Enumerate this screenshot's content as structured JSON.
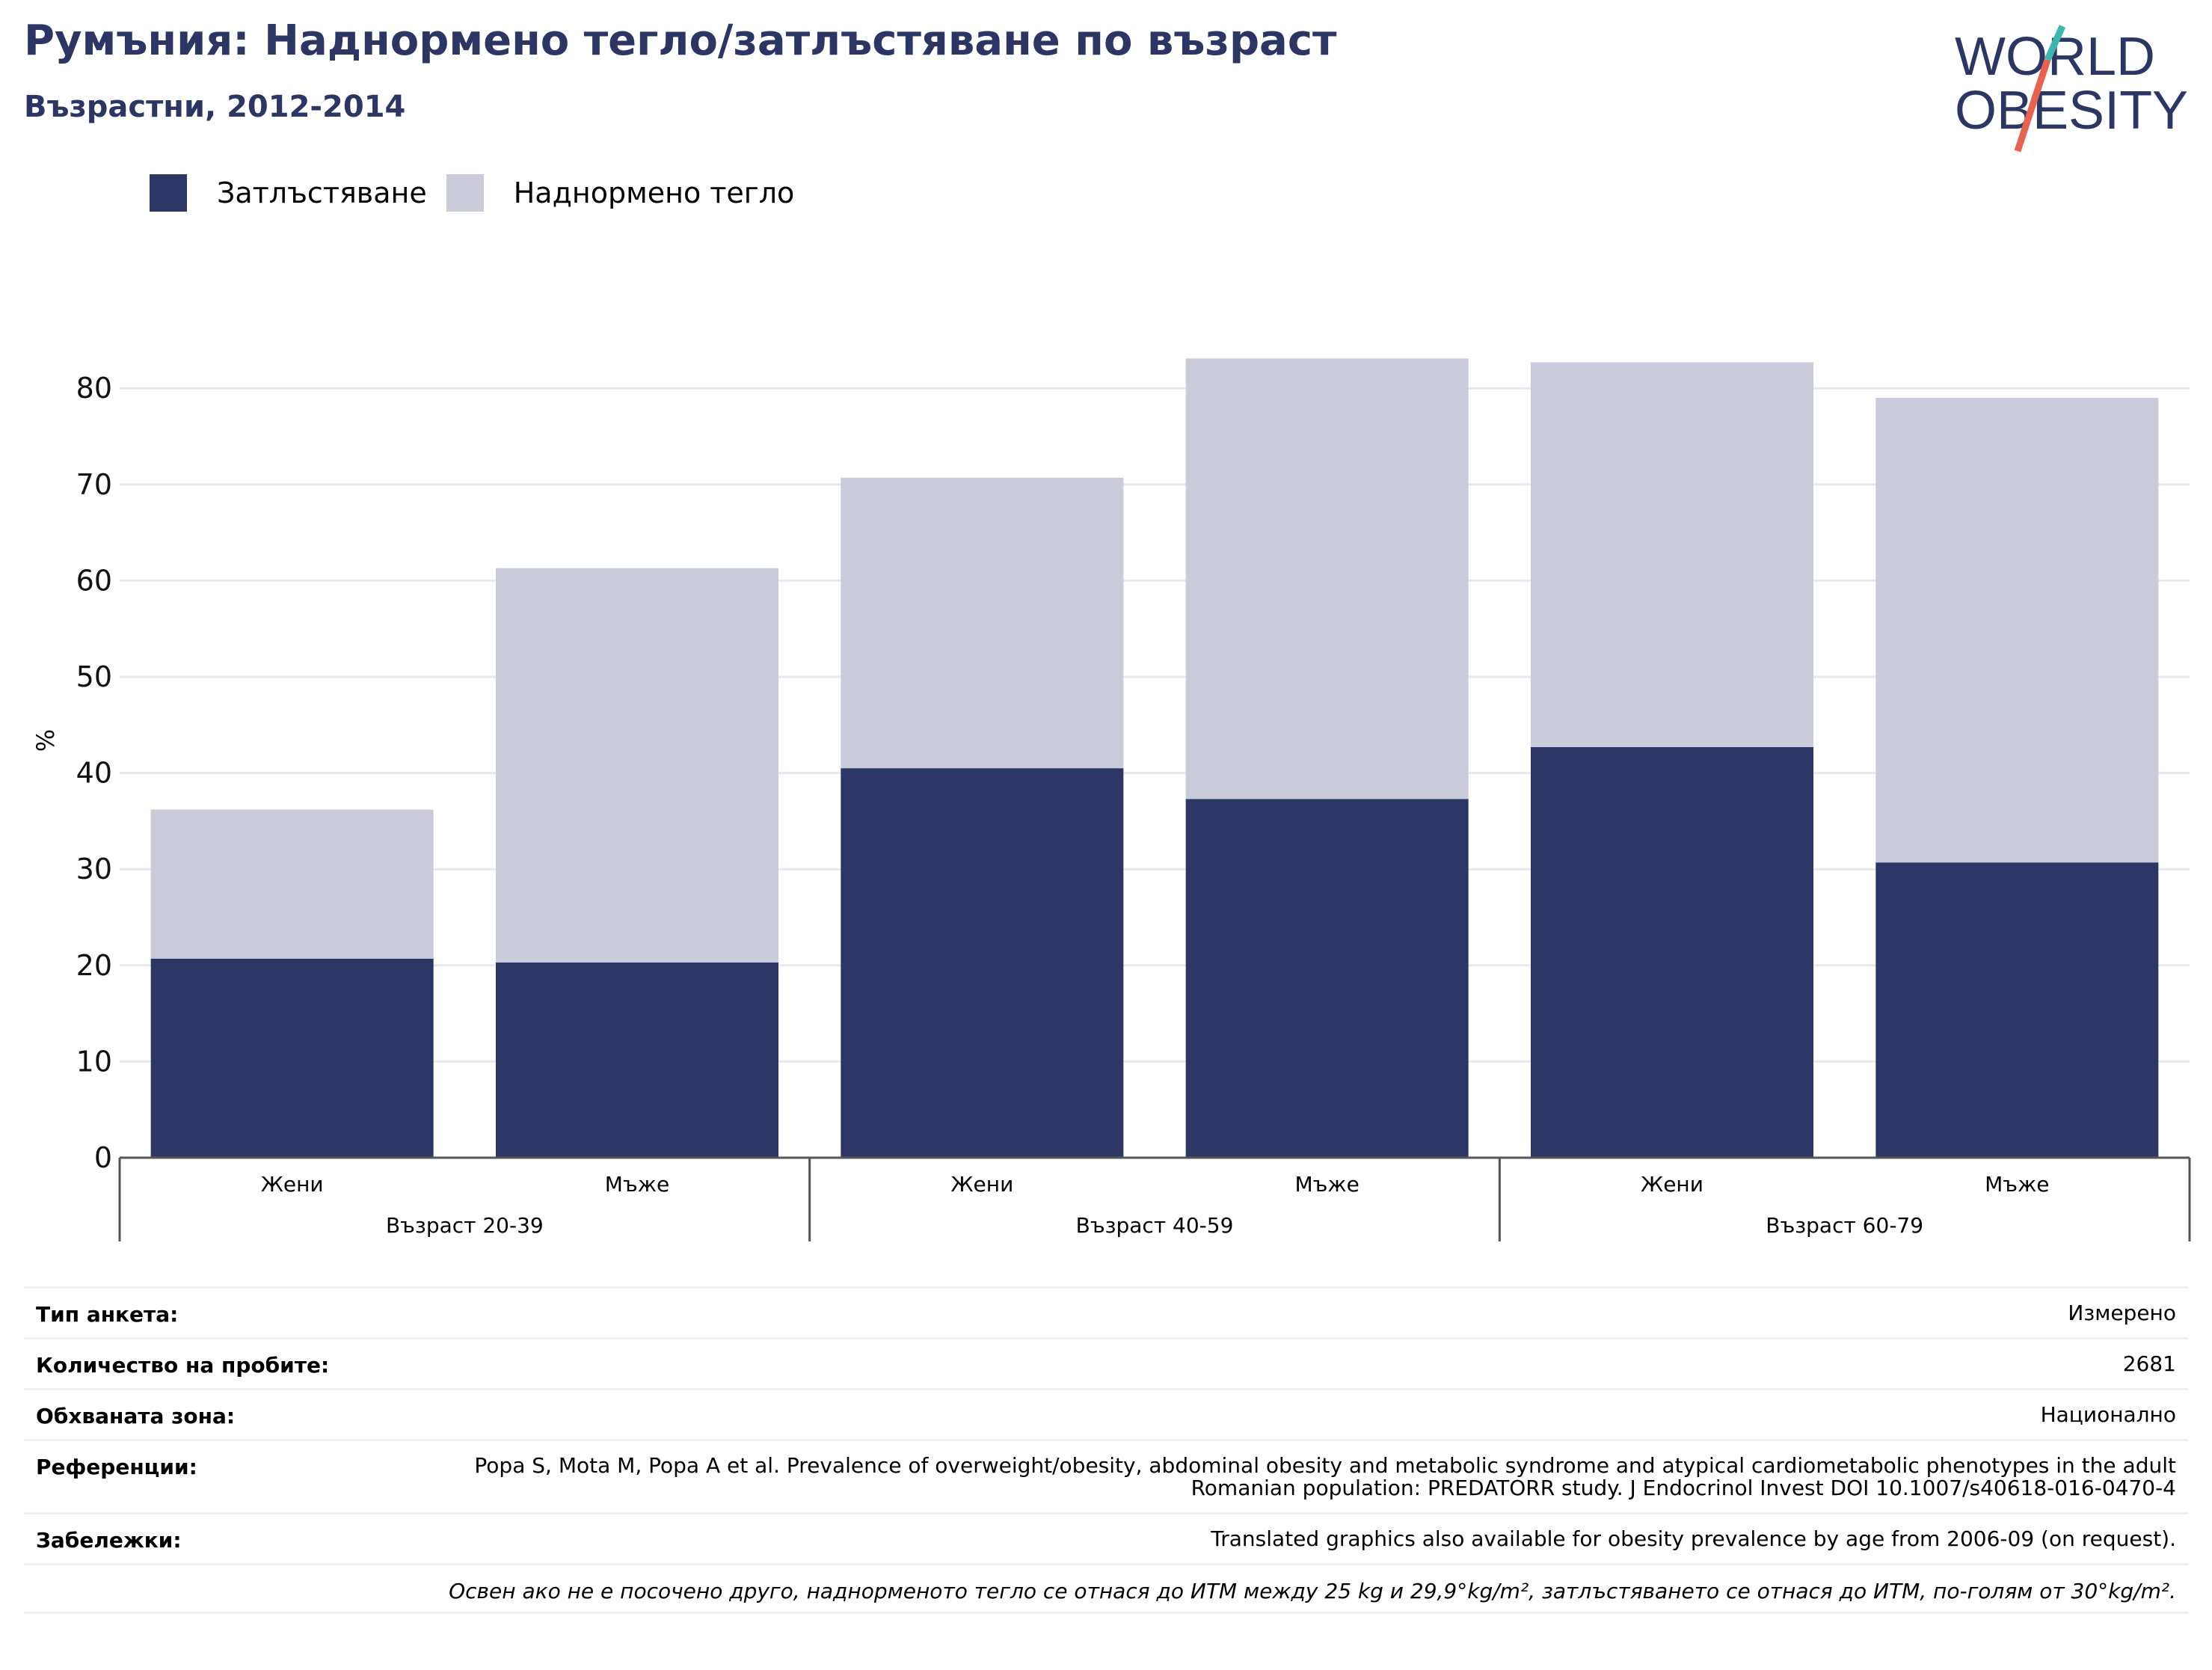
{
  "title": "Румъния: Наднормено тегло/затлъстяване по възраст",
  "subtitle": "Възрастни, 2012-2014",
  "logo": {
    "line1": "WORLD",
    "line2": "OBESITY"
  },
  "colors": {
    "obesity": "#2b3664",
    "overweight": "#c9cbd8",
    "title": "#2b3664",
    "grid": "#e8e9f0"
  },
  "chart_data": {
    "type": "bar",
    "stacked": true,
    "legend_position": "top-left",
    "ylabel": "%",
    "ylim": [
      0,
      85
    ],
    "yticks": [
      0,
      10,
      20,
      30,
      40,
      50,
      60,
      70,
      80
    ],
    "grid": true,
    "categories": [
      "Жени",
      "Мъже",
      "Жени",
      "Мъже",
      "Жени",
      "Мъже"
    ],
    "groups": [
      {
        "label": "Възраст 20-39",
        "span": 2
      },
      {
        "label": "Възраст 40-59",
        "span": 2
      },
      {
        "label": "Възраст 60-79",
        "span": 2
      }
    ],
    "series": [
      {
        "name": "Затлъстяване",
        "color": "#2b3664",
        "values": [
          20.7,
          20.3,
          40.5,
          37.3,
          42.7,
          30.7
        ]
      },
      {
        "name": "Наднормено тегло",
        "color": "#c9cbd8",
        "values": [
          15.5,
          41.0,
          30.2,
          45.8,
          40.0,
          48.3
        ]
      }
    ]
  },
  "info": [
    {
      "label": "Тип анкета:",
      "value": "Измерено"
    },
    {
      "label": "Количество на пробите:",
      "value": "2681"
    },
    {
      "label": "Обхваната зона:",
      "value": "Национално"
    },
    {
      "label": "Референции:",
      "value": "Popa S, Mota M, Popa A et al. Prevalence of overweight/obesity, abdominal obesity and metabolic syndrome and atypical cardiometabolic phenotypes in the adult Romanian population: PREDATORR study. J Endocrinol Invest DOI 10.1007/s40618-016-0470-4"
    },
    {
      "label": "Забележки:",
      "value": "Translated graphics also available for obesity prevalence by age from 2006-09 (on request)."
    }
  ],
  "footnote": "Освен ако не е посочено друго, наднорменото тегло се отнася до ИТМ между 25 kg и 29,9°kg/m², затлъстяването се отнася до ИТМ, по-голям от 30°kg/m²."
}
